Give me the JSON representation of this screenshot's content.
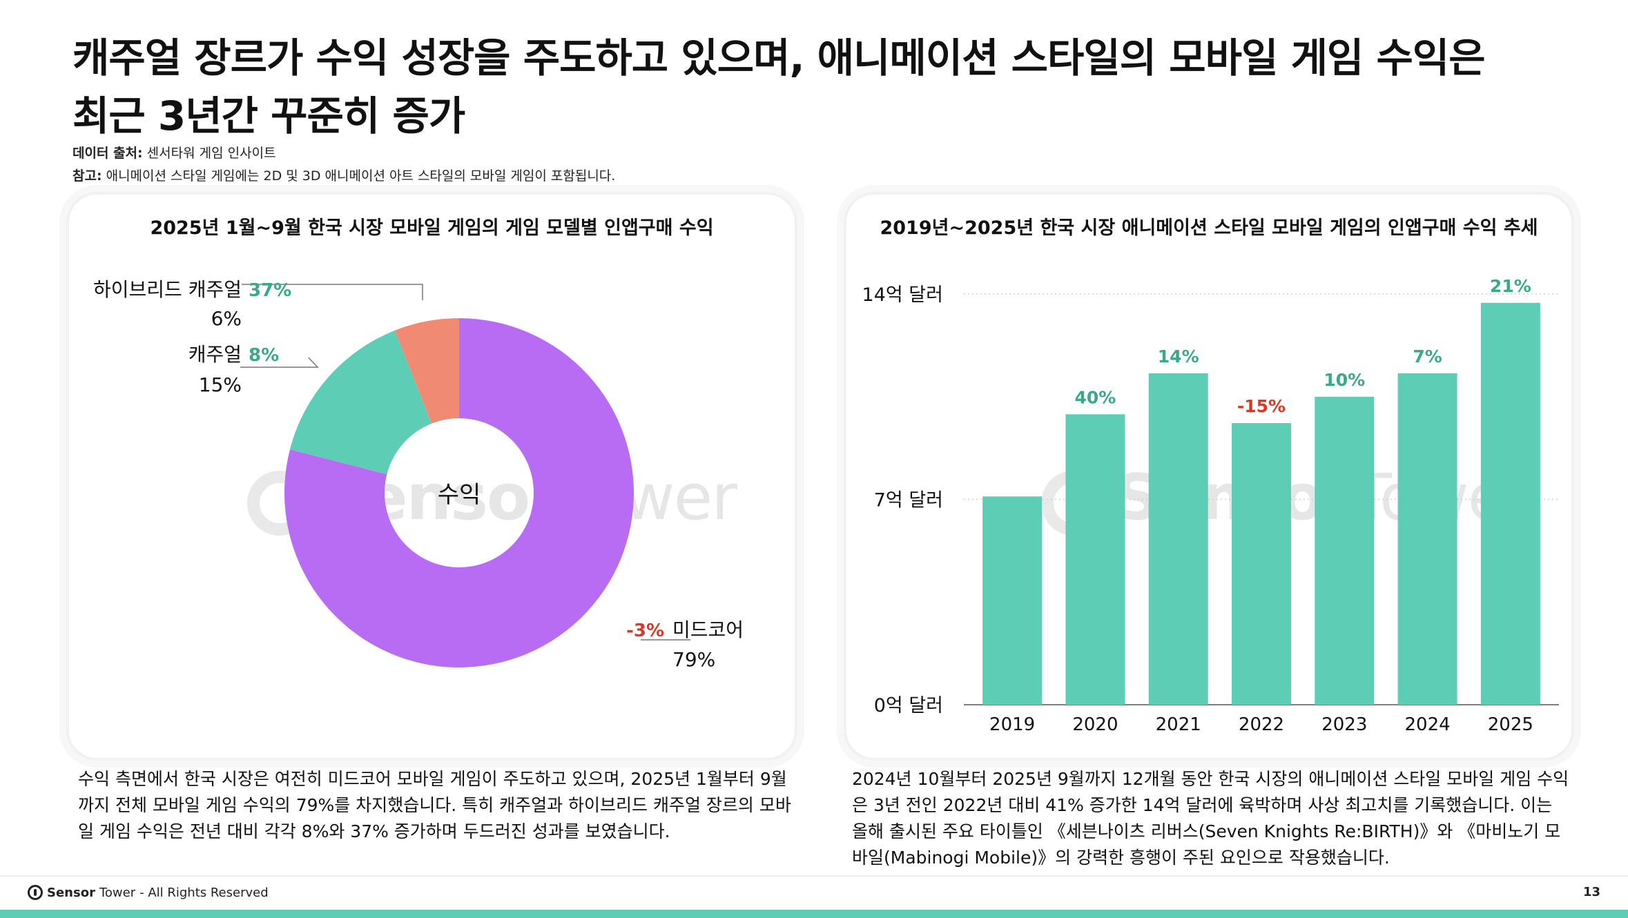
{
  "title": {
    "line1": "캐주얼 장르가 수익 성장을 주도하고 있으며, 애니메이션 스타일의 모바일 게임 수익은",
    "line2": "최근 3년간 꾸준히 증가"
  },
  "meta": {
    "source_label": "데이터 출처:",
    "source_value": " 센서타워 게임 인사이트",
    "note_label": "참고:",
    "note_value": " 애니메이션 스타일 게임에는 2D 및 3D 애니메이션 아트 스타일의 모바일 게임이 포함됩니다."
  },
  "watermark": {
    "bold": "Sensor",
    "thin": "Tower"
  },
  "colors": {
    "purple": "#b86cf3",
    "teal": "#5ecdb6",
    "salmon": "#f08a72",
    "growth_green": "#3aa88a",
    "decline_red": "#d63a24"
  },
  "chart_data": [
    {
      "type": "pie",
      "title": "2025년 1월~9월 한국 시장 모바일 게임의 게임 모델별 인앱구매 수익",
      "center_label": "수익",
      "slices": [
        {
          "name": "미드코어",
          "value": 79,
          "value_label": "79%",
          "growth": "-3%",
          "color": "#b86cf3",
          "growth_type": "negative"
        },
        {
          "name": "캐주얼",
          "value": 15,
          "value_label": "15%",
          "growth": "8%",
          "color": "#5ecdb6",
          "growth_type": "positive"
        },
        {
          "name": "하이브리드 캐주얼",
          "value": 6,
          "value_label": "6%",
          "growth": "37%",
          "color": "#f08a72",
          "growth_type": "positive"
        }
      ]
    },
    {
      "type": "bar",
      "title": "2019년~2025년 한국 시장 애니메이션 스타일 모바일 게임의 인앱구매 수익 추세",
      "categories": [
        "2019",
        "2020",
        "2021",
        "2022",
        "2023",
        "2024",
        "2025"
      ],
      "values": [
        7.1,
        9.9,
        11.3,
        9.6,
        10.5,
        11.3,
        13.7
      ],
      "growth_labels": [
        "",
        "40%",
        "14%",
        "-15%",
        "10%",
        "7%",
        "21%"
      ],
      "growth_types": [
        "",
        "positive",
        "positive",
        "negative",
        "positive",
        "positive",
        "positive"
      ],
      "ylim": [
        0,
        14
      ],
      "yticks": [
        0,
        7,
        14
      ],
      "ytick_labels": [
        "0억 달러",
        "7억 달러",
        "14억 달러"
      ],
      "bar_color": "#5ecdb6",
      "grid": true
    }
  ],
  "descriptions": {
    "left": "수익 측면에서 한국 시장은 여전히 미드코어 모바일 게임이 주도하고 있으며, 2025년 1월부터 9월까지 전체 모바일 게임 수익의 79%를 차지했습니다. 특히 캐주얼과 하이브리드 캐주얼 장르의 모바일 게임 수익은 전년 대비 각각 8%와 37% 증가하며 두드러진 성과를 보였습니다.",
    "right": "2024년 10월부터 2025년 9월까지 12개월 동안 한국 시장의 애니메이션 스타일 모바일 게임 수익은 3년 전인 2022년 대비 41% 증가한 14억 달러에 육박하며 사상 최고치를 기록했습니다. 이는 올해 출시된 주요 타이틀인 《세븐나이츠 리버스(Seven Knights Re:BIRTH)》와 《마비노기 모바일(Mabinogi Mobile)》의 강력한 흥행이 주된 요인으로 작용했습니다."
  },
  "footer": {
    "brand_bold": "Sensor",
    "brand_rest": "Tower",
    "rights": " - All Rights Reserved",
    "page": "13"
  }
}
